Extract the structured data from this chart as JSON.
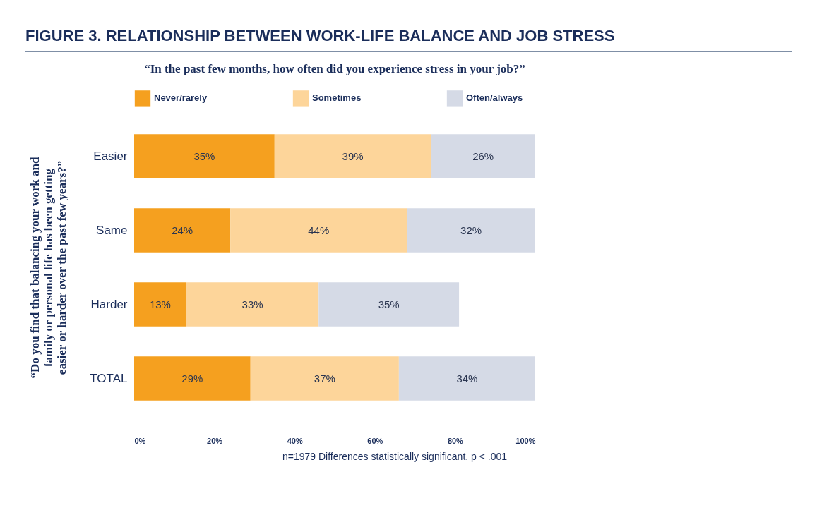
{
  "chart_data": {
    "type": "bar",
    "orientation": "horizontal",
    "stacked": true,
    "title": "FIGURE 3. RELATIONSHIP BETWEEN WORK-LIFE BALANCE AND JOB STRESS",
    "subtitle": "“In the past few months, how often did you experience stress in your job?”",
    "ylabel": "“Do you find that balancing your work and family or personal life has been getting easier or harder over the past few years?”",
    "categories": [
      "Easier",
      "Same",
      "Harder",
      "TOTAL"
    ],
    "series": [
      {
        "name": "Never/rarely",
        "color": "#f5a01f",
        "values": [
          35,
          24,
          13,
          29
        ],
        "value_labels": [
          "35%",
          "24%",
          "13%",
          "29%"
        ]
      },
      {
        "name": "Sometimes",
        "color": "#fdd59a",
        "values": [
          39,
          44,
          33,
          37
        ],
        "value_labels": [
          "39%",
          "44%",
          "33%",
          "37%"
        ]
      },
      {
        "name": "Often/always",
        "color": "#d5dae6",
        "values": [
          26,
          32,
          35,
          34
        ],
        "value_labels": [
          "26%",
          "32%",
          "35%",
          "34%"
        ]
      }
    ],
    "xlim": [
      0,
      100
    ],
    "xticks": [
      {
        "value": 0,
        "label": "0%"
      },
      {
        "value": 20,
        "label": "20%"
      },
      {
        "value": 40,
        "label": "40%"
      },
      {
        "value": 60,
        "label": "60%"
      },
      {
        "value": 80,
        "label": "80%"
      },
      {
        "value": 100,
        "label": "100%"
      }
    ],
    "legend": "top",
    "grid": false,
    "annotations": [
      "n=1979  Differences statistically significant, p < .001"
    ]
  }
}
